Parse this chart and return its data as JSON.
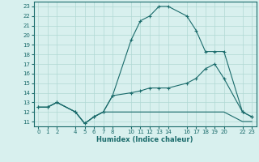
{
  "title": "",
  "xlabel": "Humidex (Indice chaleur)",
  "xlim": [
    -0.5,
    23.5
  ],
  "ylim": [
    10.5,
    23.5
  ],
  "yticks": [
    11,
    12,
    13,
    14,
    15,
    16,
    17,
    18,
    19,
    20,
    21,
    22,
    23
  ],
  "xticks": [
    0,
    1,
    2,
    4,
    5,
    6,
    7,
    8,
    10,
    11,
    12,
    13,
    14,
    16,
    17,
    18,
    19,
    20,
    22,
    23
  ],
  "bg_color": "#d8f0ee",
  "line_color": "#1a6b6b",
  "grid_color": "#b0d8d4",
  "line1_x": [
    0,
    1,
    2,
    4,
    5,
    6,
    7,
    8,
    10,
    11,
    12,
    13,
    14,
    16,
    17,
    18,
    19,
    20,
    22,
    23
  ],
  "line1_y": [
    12.5,
    12.5,
    13.0,
    12.0,
    10.8,
    11.5,
    12.0,
    13.7,
    19.5,
    21.5,
    22.0,
    23.0,
    23.0,
    22.0,
    20.5,
    18.3,
    18.3,
    18.3,
    12.0,
    11.5
  ],
  "line2_x": [
    0,
    1,
    2,
    4,
    5,
    6,
    7,
    8,
    10,
    11,
    12,
    13,
    14,
    16,
    17,
    18,
    19,
    20,
    22,
    23
  ],
  "line2_y": [
    12.5,
    12.5,
    13.0,
    12.0,
    10.8,
    11.5,
    12.0,
    13.7,
    14.0,
    14.2,
    14.5,
    14.5,
    14.5,
    15.0,
    15.5,
    16.5,
    17.0,
    15.5,
    12.0,
    11.5
  ],
  "line3_x": [
    0,
    1,
    2,
    4,
    5,
    6,
    7,
    8,
    10,
    11,
    12,
    13,
    14,
    16,
    17,
    18,
    19,
    20,
    22,
    23
  ],
  "line3_y": [
    12.5,
    12.5,
    13.0,
    12.0,
    10.8,
    11.5,
    12.0,
    12.0,
    12.0,
    12.0,
    12.0,
    12.0,
    12.0,
    12.0,
    12.0,
    12.0,
    12.0,
    12.0,
    11.0,
    11.0
  ]
}
